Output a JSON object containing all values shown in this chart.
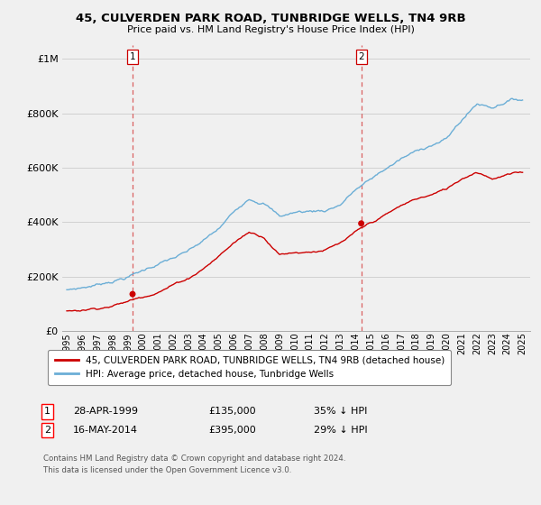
{
  "title": "45, CULVERDEN PARK ROAD, TUNBRIDGE WELLS, TN4 9RB",
  "subtitle": "Price paid vs. HM Land Registry's House Price Index (HPI)",
  "legend_line1": "45, CULVERDEN PARK ROAD, TUNBRIDGE WELLS, TN4 9RB (detached house)",
  "legend_line2": "HPI: Average price, detached house, Tunbridge Wells",
  "footnote1": "Contains HM Land Registry data © Crown copyright and database right 2024.",
  "footnote2": "This data is licensed under the Open Government Licence v3.0.",
  "sale1_label": "1",
  "sale1_date": "28-APR-1999",
  "sale1_price": "£135,000",
  "sale1_hpi": "35% ↓ HPI",
  "sale2_label": "2",
  "sale2_date": "16-MAY-2014",
  "sale2_price": "£395,000",
  "sale2_hpi": "29% ↓ HPI",
  "hpi_color": "#6baed6",
  "price_color": "#cc0000",
  "marker_color": "#cc0000",
  "dashed_color": "#cc0000",
  "background_color": "#f0f0f0",
  "ylim_min": 0,
  "ylim_max": 1050000,
  "yticks": [
    0,
    200000,
    400000,
    600000,
    800000,
    1000000
  ],
  "xlim_min": 1994.7,
  "xlim_max": 2025.5,
  "sale1_x": 1999.33,
  "sale1_y": 135000,
  "sale2_x": 2014.38,
  "sale2_y": 395000,
  "hpi_keypoints_x": [
    1995,
    1996,
    1997,
    1998,
    1999,
    2000,
    2001,
    2002,
    2003,
    2004,
    2005,
    2006,
    2007,
    2008,
    2009,
    2010,
    2011,
    2012,
    2013,
    2014,
    2015,
    2016,
    2017,
    2018,
    2019,
    2020,
    2021,
    2022,
    2023,
    2024,
    2025
  ],
  "hpi_keypoints_y": [
    148000,
    158000,
    170000,
    188000,
    205000,
    228000,
    255000,
    275000,
    295000,
    330000,
    370000,
    430000,
    490000,
    480000,
    430000,
    445000,
    450000,
    455000,
    480000,
    535000,
    570000,
    610000,
    645000,
    670000,
    700000,
    720000,
    790000,
    850000,
    840000,
    870000,
    875000
  ],
  "price_keypoints_x": [
    1995,
    1996,
    1997,
    1998,
    1999,
    2000,
    2001,
    2002,
    2003,
    2004,
    2005,
    2006,
    2007,
    2008,
    2009,
    2010,
    2011,
    2012,
    2013,
    2014,
    2015,
    2016,
    2017,
    2018,
    2019,
    2020,
    2021,
    2022,
    2023,
    2024,
    2025
  ],
  "price_keypoints_y": [
    72000,
    78000,
    88000,
    100000,
    115000,
    135000,
    158000,
    185000,
    210000,
    250000,
    295000,
    345000,
    385000,
    370000,
    310000,
    320000,
    325000,
    335000,
    355000,
    390000,
    420000,
    450000,
    480000,
    505000,
    520000,
    540000,
    580000,
    610000,
    590000,
    605000,
    610000
  ]
}
